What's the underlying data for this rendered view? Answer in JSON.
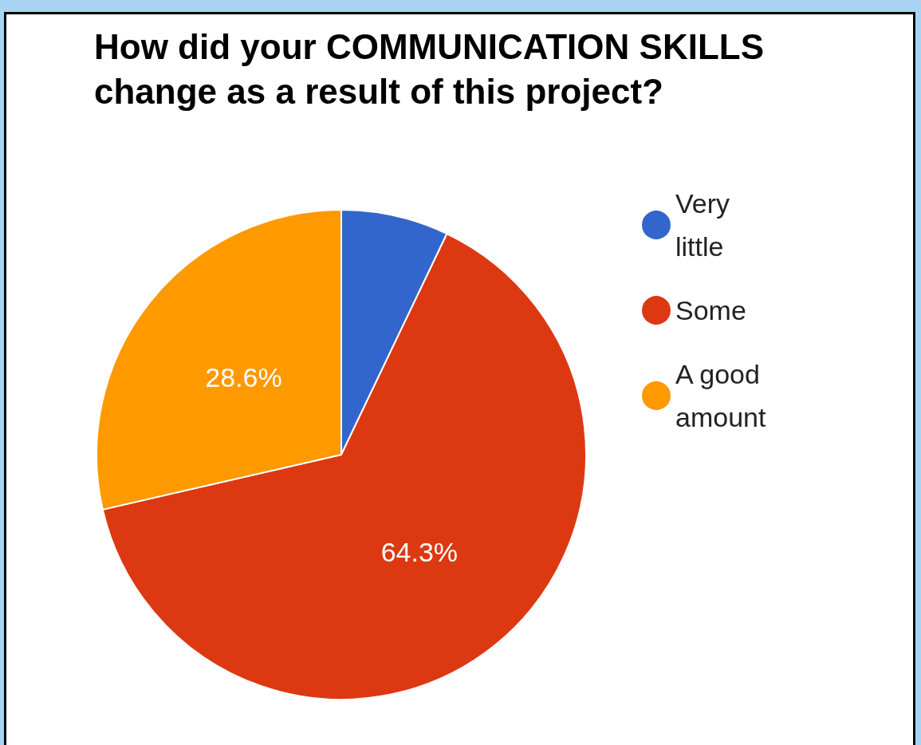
{
  "chart_data": {
    "type": "pie",
    "title": "How did your COMMUNICATION SKILLS change as a result of this project?",
    "categories": [
      "Very little",
      "Some",
      "A good amount"
    ],
    "values": [
      7.1,
      64.3,
      28.6
    ],
    "colors": [
      "#3366cc",
      "#dc3912",
      "#ff9900"
    ],
    "value_labels": [
      null,
      "64.3%",
      "28.6%"
    ],
    "legend": "top right"
  }
}
